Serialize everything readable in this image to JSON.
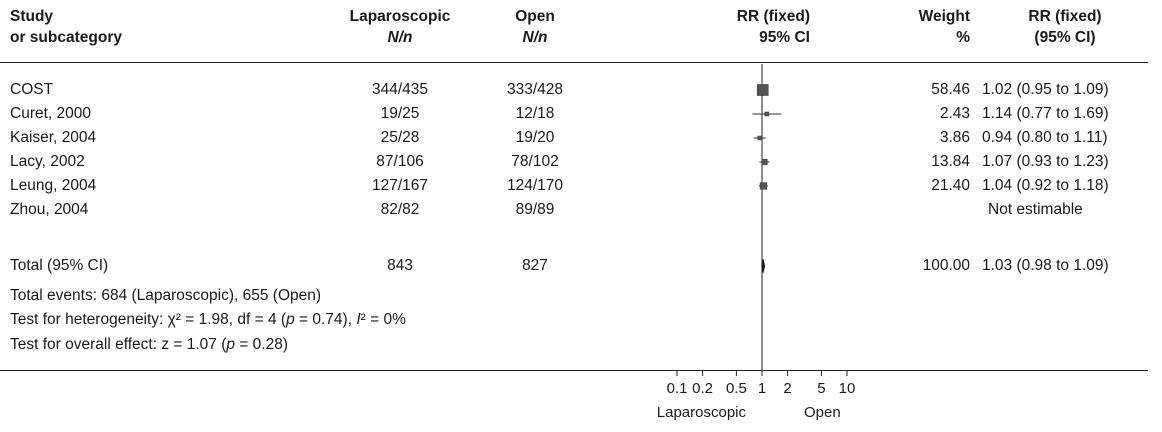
{
  "headers": {
    "study": [
      "Study",
      "or subcategory"
    ],
    "lap": [
      "Laparoscopic",
      "N/n"
    ],
    "open": [
      "Open",
      "N/n"
    ],
    "rr_plot": [
      "RR (fixed)",
      "95% CI"
    ],
    "weight": [
      "Weight",
      "%"
    ],
    "rr_text": [
      "RR (fixed)",
      "(95% CI)"
    ]
  },
  "chart_data": {
    "type": "forest",
    "scale": "log",
    "axis_ticks": [
      0.1,
      0.2,
      0.5,
      1,
      2,
      5,
      10
    ],
    "axis_tick_labels": [
      "0.1",
      "0.2",
      "0.5",
      "1",
      "2",
      "5",
      "10"
    ],
    "favours_left": "Laparoscopic",
    "favours_right": "Open",
    "studies": [
      {
        "name": "COST",
        "lap": "344/435",
        "open": "333/428",
        "weight": "58.46",
        "ci_text": "1.02 (0.95 to 1.09)",
        "rr": 1.02,
        "lo": 0.95,
        "hi": 1.09,
        "w": 58.46
      },
      {
        "name": "Curet, 2000",
        "lap": "19/25",
        "open": "12/18",
        "weight": "2.43",
        "ci_text": "1.14 (0.77 to 1.69)",
        "rr": 1.14,
        "lo": 0.77,
        "hi": 1.69,
        "w": 2.43
      },
      {
        "name": "Kaiser, 2004",
        "lap": "25/28",
        "open": "19/20",
        "weight": "3.86",
        "ci_text": "0.94 (0.80 to 1.11)",
        "rr": 0.94,
        "lo": 0.8,
        "hi": 1.11,
        "w": 3.86
      },
      {
        "name": "Lacy, 2002",
        "lap": "87/106",
        "open": "78/102",
        "weight": "13.84",
        "ci_text": "1.07 (0.93 to 1.23)",
        "rr": 1.07,
        "lo": 0.93,
        "hi": 1.23,
        "w": 13.84
      },
      {
        "name": "Leung, 2004",
        "lap": "127/167",
        "open": "124/170",
        "weight": "21.40",
        "ci_text": "1.04 (0.92 to 1.18)",
        "rr": 1.04,
        "lo": 0.92,
        "hi": 1.18,
        "w": 21.4
      },
      {
        "name": "Zhou, 2004",
        "lap": "82/82",
        "open": "89/89",
        "weight": "",
        "ci_text": "Not estimable",
        "rr": null,
        "lo": null,
        "hi": null,
        "w": null
      }
    ],
    "total": {
      "name": "Total (95% CI)",
      "lap": "843",
      "open": "827",
      "weight": "100.00",
      "ci_text": "1.03 (0.98 to 1.09)",
      "rr": 1.03,
      "lo": 0.98,
      "hi": 1.09
    }
  },
  "footer": {
    "events": "Total events: 684 (Laparoscopic), 655 (Open)",
    "heterogeneity_prefix": "Test for heterogeneity: χ² = 1.98, df = 4 (",
    "heterogeneity_p": "p",
    "heterogeneity_mid": " = 0.74), ",
    "heterogeneity_i": "I",
    "heterogeneity_suffix": "² = 0%",
    "effect_prefix": "Test for overall effect: z = 1.07 (",
    "effect_p": "p",
    "effect_suffix": " = 0.28)"
  }
}
